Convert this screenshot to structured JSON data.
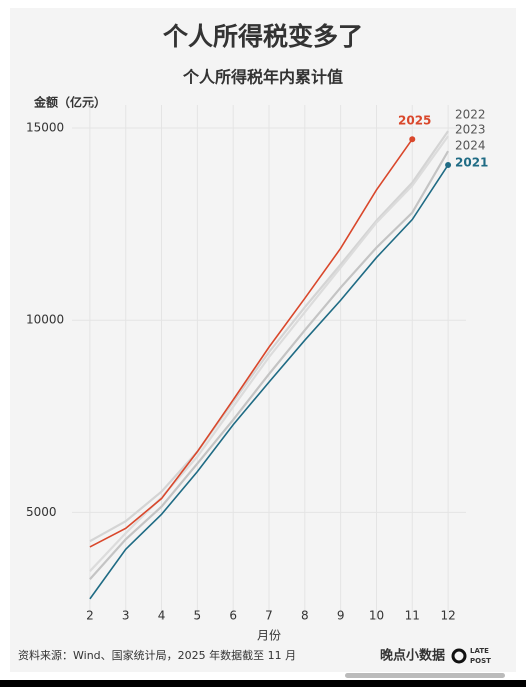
{
  "chart_data": {
    "type": "line",
    "title": "个人所得税变多了",
    "subtitle": "个人所得税年内累计值",
    "y_label": "金额（亿元）",
    "x_label": "月份",
    "source": "资料来源：Wind、国家统计局，2025 年数据截至 11 月",
    "brand": "晚点小数据",
    "logo": [
      "LATE",
      "POST"
    ],
    "x": [
      2,
      3,
      4,
      5,
      6,
      7,
      8,
      9,
      10,
      11,
      12
    ],
    "xlim": [
      1.5,
      12.5
    ],
    "xticks": [
      2,
      3,
      4,
      5,
      6,
      7,
      8,
      9,
      10,
      11,
      12
    ],
    "ylim": [
      2200,
      15600
    ],
    "yticks": [
      5000,
      10000,
      15000
    ],
    "grid": true,
    "series": [
      {
        "name": "2022",
        "color": "#d4d4d4",
        "values": [
          4250,
          4770,
          5540,
          6580,
          7880,
          9170,
          10340,
          11450,
          12590,
          13580,
          14920
        ]
      },
      {
        "name": "2023",
        "color": "#dcdcdc",
        "values": [
          3470,
          4460,
          5390,
          6450,
          7750,
          9040,
          10210,
          11370,
          12540,
          13500,
          14790
        ]
      },
      {
        "name": "2024",
        "color": "#c4c4c4",
        "values": [
          3260,
          4300,
          5150,
          6270,
          7410,
          8600,
          9740,
          10850,
          11890,
          12800,
          14400
        ]
      },
      {
        "name": "2021",
        "color": "#1f6b84",
        "values": [
          2750,
          4040,
          4950,
          6060,
          7280,
          8390,
          9480,
          10520,
          11630,
          12620,
          14040
        ]
      },
      {
        "name": "2025",
        "color": "#d9472b",
        "values": [
          4100,
          4585,
          5360,
          6580,
          7930,
          9300,
          10570,
          11870,
          13390,
          14710,
          null
        ]
      }
    ]
  }
}
